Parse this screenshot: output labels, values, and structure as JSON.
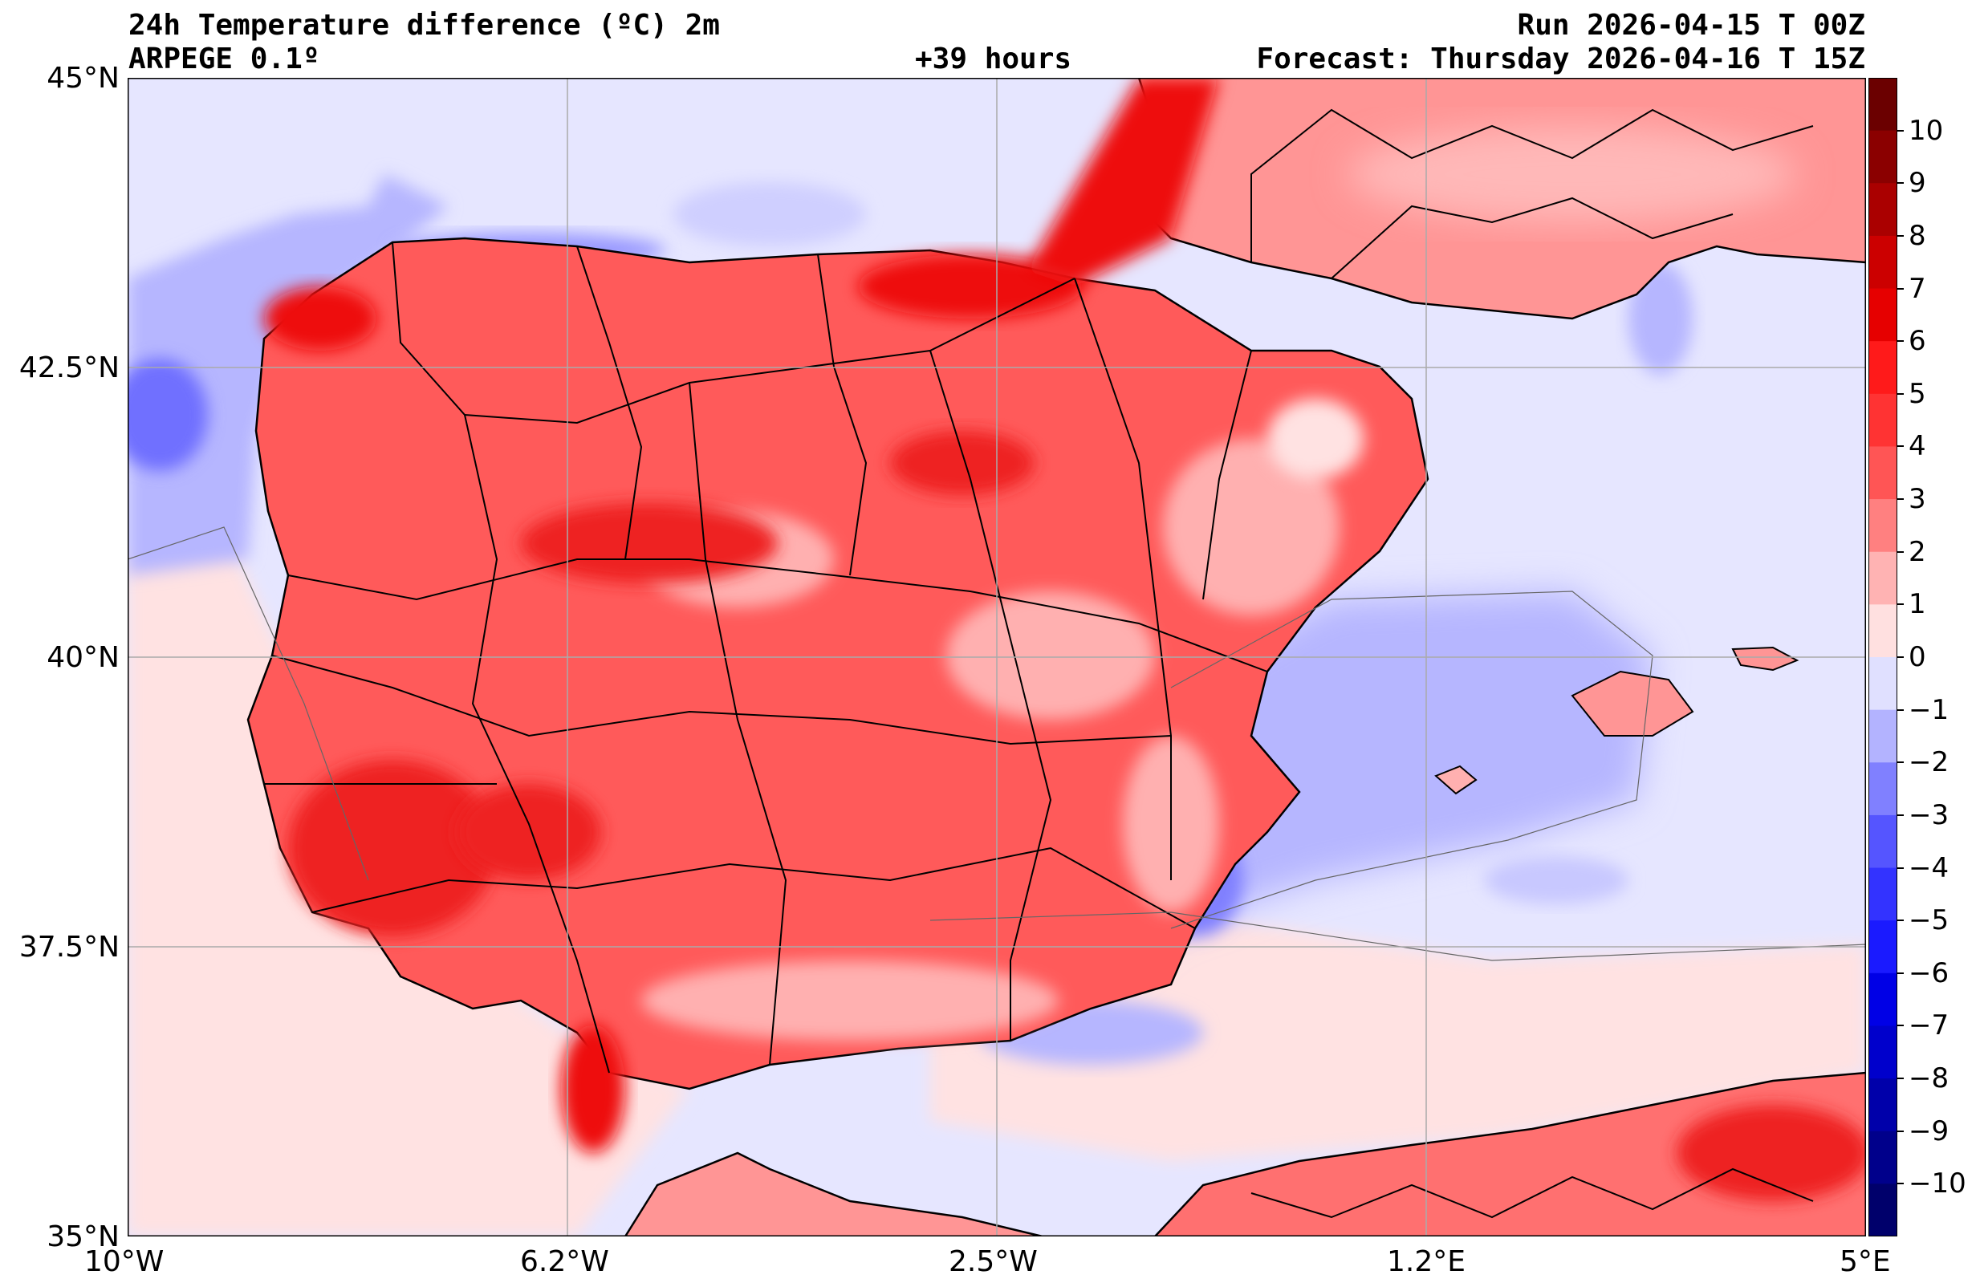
{
  "header": {
    "title": "24h Temperature difference (ºC) 2m",
    "model": "ARPEGE 0.1º",
    "lead_time": "+39 hours",
    "run": "Run 2026-04-15 T 00Z",
    "forecast": "Forecast: Thursday 2026-04-16 T 15Z"
  },
  "axes": {
    "lat_ticks": [
      "45°N",
      "42.5°N",
      "40°N",
      "37.5°N",
      "35°N"
    ],
    "lon_ticks": [
      "10°W",
      "6.2°W",
      "2.5°W",
      "1.2°E",
      "5°E"
    ]
  },
  "colorbar": {
    "labels": [
      "10",
      "9",
      "8",
      "7",
      "6",
      "5",
      "4",
      "3",
      "2",
      "1",
      "0",
      "−1",
      "−2",
      "−3",
      "−4",
      "−5",
      "−6",
      "−7",
      "−8",
      "−9",
      "−10"
    ],
    "colors": [
      "#6b0000",
      "#8b0000",
      "#aa0000",
      "#cc0000",
      "#e60000",
      "#ff1a1a",
      "#ff3333",
      "#ff5555",
      "#ff8080",
      "#ffb3b3",
      "#ffe0e0",
      "#e0e0ff",
      "#b3b3ff",
      "#8080ff",
      "#5555ff",
      "#3333ff",
      "#1a1aff",
      "#0000e6",
      "#0000cc",
      "#0000aa",
      "#00008b",
      "#00006b"
    ]
  },
  "colors": {
    "sea_neutral": "#e6e6ff",
    "land_warm": "#ff5a5a",
    "land_hot": "#ee1111",
    "land_mild": "#ffb0b0",
    "neutral_pink": "#ffe2e2",
    "cool": "#b6b6ff",
    "cold": "#7070ff"
  }
}
